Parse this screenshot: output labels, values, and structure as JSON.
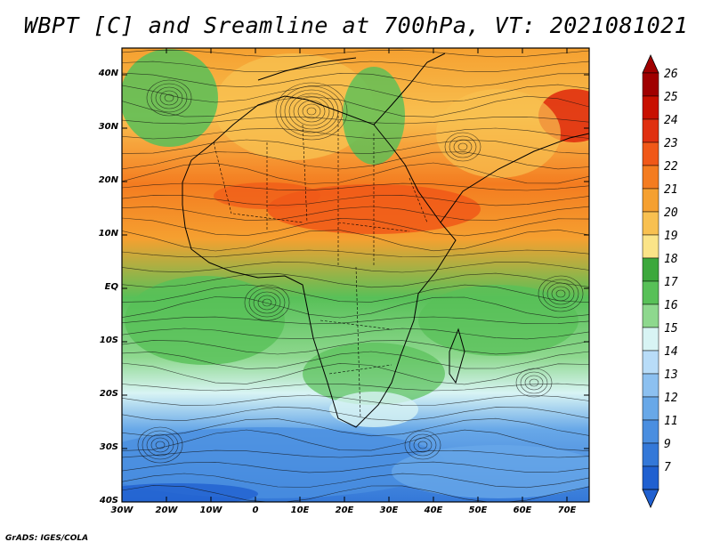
{
  "title": "WBPT [C] and Sreamline at 700hPa, VT: 2021081021",
  "credit": "GrADS: IGES/COLA",
  "map": {
    "lat_ticks": [
      "40N",
      "30N",
      "20N",
      "10N",
      "EQ",
      "10S",
      "20S",
      "30S",
      "40S"
    ],
    "lon_ticks": [
      "30W",
      "20W",
      "10W",
      "0",
      "10E",
      "20E",
      "30E",
      "40E",
      "50E",
      "60E",
      "70E"
    ],
    "lon_range": [
      -30,
      75
    ],
    "lat_range": [
      -40,
      45
    ]
  },
  "colorbar": {
    "labels": [
      "26",
      "25",
      "24",
      "23",
      "22",
      "21",
      "20",
      "19",
      "18",
      "17",
      "16",
      "15",
      "14",
      "13",
      "12",
      "11",
      "9",
      "7"
    ],
    "colors": [
      "#a00000",
      "#c81000",
      "#e03010",
      "#f05818",
      "#f47c20",
      "#f5a030",
      "#f8c050",
      "#fbe488",
      "#3ca83c",
      "#58c058",
      "#8ed88e",
      "#d8f4f4",
      "#b8dcf8",
      "#8cc0f0",
      "#68a8e8",
      "#4a8ee0",
      "#3478d8",
      "#2060d0"
    ]
  }
}
